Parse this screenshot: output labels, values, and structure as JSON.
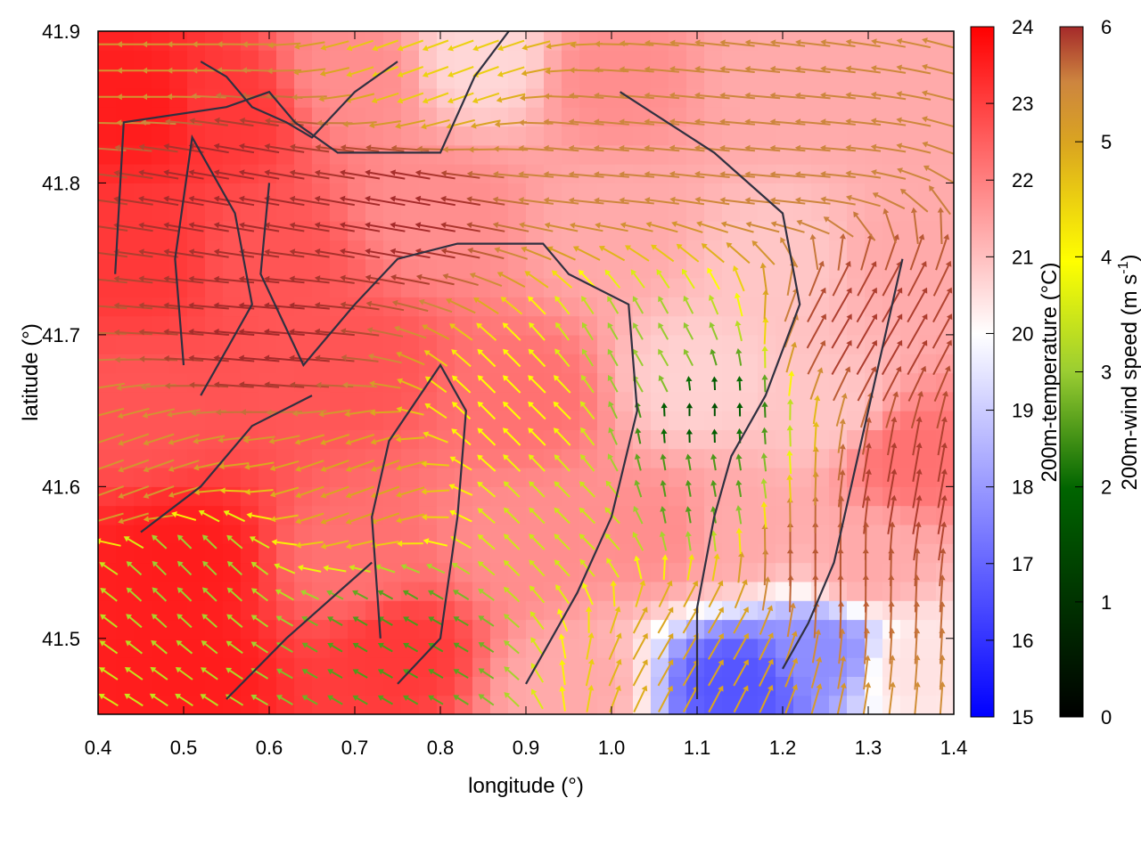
{
  "chart_data": {
    "type": "heatmap",
    "xlabel": "longitude (°)",
    "ylabel": "latitude (°)",
    "xlim": [
      0.4,
      1.4
    ],
    "ylim": [
      41.45,
      41.9
    ],
    "xticks": [
      "0.4",
      "0.5",
      "0.6",
      "0.7",
      "0.8",
      "0.9",
      "1.0",
      "1.1",
      "1.2",
      "1.3",
      "1.4"
    ],
    "yticks": [
      "41.5",
      "41.6",
      "41.7",
      "41.8",
      "41.9"
    ],
    "temperature_colorbar": {
      "label": "200m-temperature (°C)",
      "range": [
        15,
        24
      ],
      "ticks": [
        "15",
        "16",
        "17",
        "18",
        "19",
        "20",
        "21",
        "22",
        "23",
        "24"
      ],
      "colors": [
        "#0000ff",
        "#ffffff",
        "#ff0000"
      ]
    },
    "wind_colorbar": {
      "label_main": "200m-wind speed (m s",
      "label_sup": "-1",
      "label_end": ")",
      "range": [
        0,
        6
      ],
      "ticks": [
        "0",
        "1",
        "2",
        "3",
        "4",
        "5",
        "6"
      ],
      "colors": [
        "#000000",
        "#006400",
        "#9acd32",
        "#ffff00",
        "#daa520",
        "#cd853f",
        "#a52a2a"
      ]
    },
    "temperature_field_estimate": [
      {
        "lon": 0.45,
        "lat": 41.85,
        "t": 23.5
      },
      {
        "lon": 0.55,
        "lat": 41.85,
        "t": 23.0
      },
      {
        "lon": 0.7,
        "lat": 41.87,
        "t": 21.5
      },
      {
        "lon": 0.85,
        "lat": 41.88,
        "t": 20.2
      },
      {
        "lon": 1.0,
        "lat": 41.87,
        "t": 21.5
      },
      {
        "lon": 1.2,
        "lat": 41.87,
        "t": 21.0
      },
      {
        "lon": 1.35,
        "lat": 41.85,
        "t": 21.0
      },
      {
        "lon": 0.45,
        "lat": 41.75,
        "t": 23.0
      },
      {
        "lon": 0.6,
        "lat": 41.75,
        "t": 22.5
      },
      {
        "lon": 0.8,
        "lat": 41.78,
        "t": 21.5
      },
      {
        "lon": 1.0,
        "lat": 41.77,
        "t": 21.0
      },
      {
        "lon": 1.2,
        "lat": 41.75,
        "t": 20.5
      },
      {
        "lon": 1.35,
        "lat": 41.75,
        "t": 21.0
      },
      {
        "lon": 0.45,
        "lat": 41.65,
        "t": 22.5
      },
      {
        "lon": 0.7,
        "lat": 41.68,
        "t": 22.5
      },
      {
        "lon": 0.9,
        "lat": 41.66,
        "t": 22.0
      },
      {
        "lon": 1.1,
        "lat": 41.67,
        "t": 20.3
      },
      {
        "lon": 1.25,
        "lat": 41.65,
        "t": 20.5
      },
      {
        "lon": 1.35,
        "lat": 41.62,
        "t": 22.0
      },
      {
        "lon": 0.5,
        "lat": 41.55,
        "t": 23.5
      },
      {
        "lon": 0.7,
        "lat": 41.55,
        "t": 22.0
      },
      {
        "lon": 0.9,
        "lat": 41.56,
        "t": 21.5
      },
      {
        "lon": 1.05,
        "lat": 41.57,
        "t": 21.5
      },
      {
        "lon": 1.15,
        "lat": 41.57,
        "t": 21.0
      },
      {
        "lon": 1.3,
        "lat": 41.55,
        "t": 21.0
      },
      {
        "lon": 0.5,
        "lat": 41.48,
        "t": 23.5
      },
      {
        "lon": 0.75,
        "lat": 41.49,
        "t": 23.0
      },
      {
        "lon": 0.95,
        "lat": 41.47,
        "t": 21.0
      },
      {
        "lon": 1.15,
        "lat": 41.47,
        "t": 16.5
      },
      {
        "lon": 1.25,
        "lat": 41.49,
        "t": 17.5
      },
      {
        "lon": 1.35,
        "lat": 41.48,
        "t": 20.0
      }
    ],
    "wind_field_estimate": [
      {
        "lon": 0.55,
        "lat": 41.8,
        "speed": 6.0,
        "dir_deg": 170
      },
      {
        "lon": 0.75,
        "lat": 41.78,
        "speed": 6.0,
        "dir_deg": 170
      },
      {
        "lon": 0.6,
        "lat": 41.7,
        "speed": 6.0,
        "dir_deg": 175
      },
      {
        "lon": 0.45,
        "lat": 41.6,
        "speed": 4.5,
        "dir_deg": 200
      },
      {
        "lon": 0.5,
        "lat": 41.55,
        "speed": 2.0,
        "dir_deg": 135
      },
      {
        "lon": 0.75,
        "lat": 41.5,
        "speed": 1.5,
        "dir_deg": 150
      },
      {
        "lon": 0.7,
        "lat": 41.6,
        "speed": 4.0,
        "dir_deg": 200
      },
      {
        "lon": 0.9,
        "lat": 41.65,
        "speed": 3.0,
        "dir_deg": 135
      },
      {
        "lon": 1.05,
        "lat": 41.68,
        "speed": 2.0,
        "dir_deg": 120
      },
      {
        "lon": 1.1,
        "lat": 41.65,
        "speed": 0.8,
        "dir_deg": 90
      },
      {
        "lon": 1.1,
        "lat": 41.6,
        "speed": 1.5,
        "dir_deg": 100
      },
      {
        "lon": 0.95,
        "lat": 41.58,
        "speed": 2.5,
        "dir_deg": 135
      },
      {
        "lon": 1.3,
        "lat": 41.7,
        "speed": 5.8,
        "dir_deg": 60
      },
      {
        "lon": 1.35,
        "lat": 41.6,
        "speed": 5.8,
        "dir_deg": 80
      },
      {
        "lon": 1.25,
        "lat": 41.55,
        "speed": 5.5,
        "dir_deg": 90
      },
      {
        "lon": 1.1,
        "lat": 41.5,
        "speed": 4.0,
        "dir_deg": 60
      },
      {
        "lon": 1.0,
        "lat": 41.82,
        "speed": 5.0,
        "dir_deg": 175
      },
      {
        "lon": 1.2,
        "lat": 41.82,
        "speed": 5.0,
        "dir_deg": 175
      },
      {
        "lon": 0.8,
        "lat": 41.88,
        "speed": 3.5,
        "dir_deg": 200
      },
      {
        "lon": 0.45,
        "lat": 41.88,
        "speed": 4.5,
        "dir_deg": 180
      }
    ]
  }
}
